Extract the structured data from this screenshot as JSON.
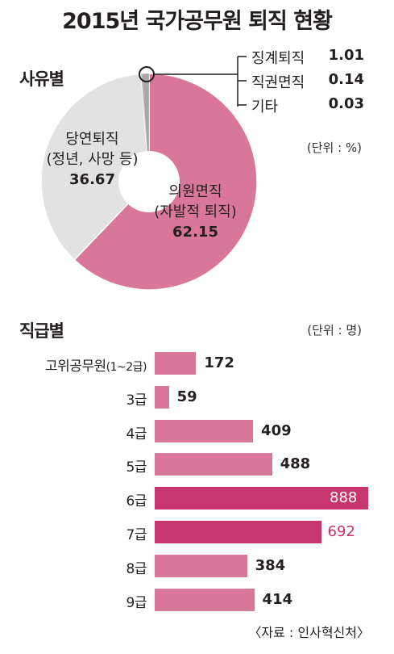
{
  "title": "2015년 국가공무원 퇴직 현황",
  "colors": {
    "pink": "#d9779a",
    "dark_pink": "#c7356d",
    "gray": "#e2e2e2",
    "thin_gray": "#a7a7a7"
  },
  "chart_data": [
    {
      "type": "pie",
      "title": "사유별",
      "unit_note": "(단위 : %)",
      "slices": [
        {
          "name": "의원면직",
          "name_sub": "(자발적 퇴직)",
          "value": 62.15,
          "value_label": "62.15"
        },
        {
          "name": "당연퇴직",
          "name_sub": "(정년, 사망 등)",
          "value": 36.67,
          "value_label": "36.67"
        },
        {
          "name": "징계퇴직",
          "value": 1.01,
          "value_label": "1.01"
        },
        {
          "name": "직권면직",
          "value": 0.14,
          "value_label": "0.14"
        },
        {
          "name": "기타",
          "value": 0.03,
          "value_label": "0.03"
        }
      ]
    },
    {
      "type": "bar",
      "orientation": "horizontal",
      "title": "직급별",
      "unit_note": "(단위 : 명)",
      "categories": [
        "고위공무원",
        "3급",
        "4급",
        "5급",
        "6급",
        "7급",
        "8급",
        "9급"
      ],
      "category_note": "(1~2급)",
      "values": [
        172,
        59,
        409,
        488,
        888,
        692,
        384,
        414
      ],
      "value_labels": [
        "172",
        "59",
        "409",
        "488",
        "888",
        "692",
        "384",
        "414"
      ],
      "highlight": [
        false,
        false,
        false,
        false,
        true,
        true,
        false,
        false
      ],
      "xlim": [
        0,
        888
      ]
    }
  ],
  "source": "〈자료 : 인사혁신처〉"
}
